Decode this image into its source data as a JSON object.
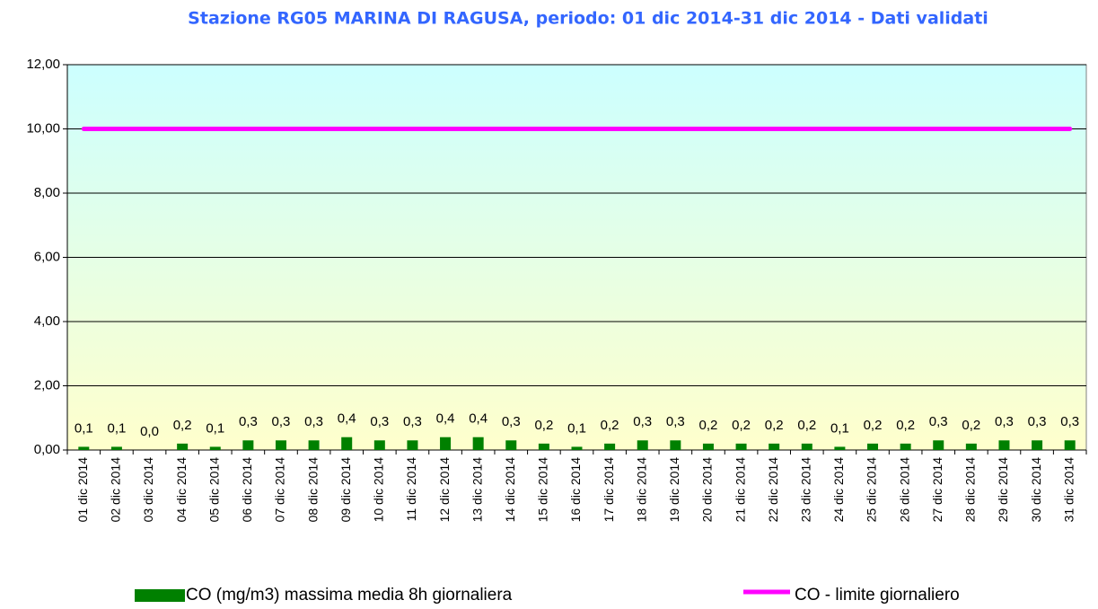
{
  "chart_data": {
    "type": "bar",
    "title": "Stazione RG05 MARINA DI RAGUSA, periodo: 01 dic 2014-31 dic 2014 - Dati validati",
    "categories": [
      "01 dic 2014",
      "02 dic 2014",
      "03 dic 2014",
      "04 dic 2014",
      "05 dic 2014",
      "06 dic 2014",
      "07 dic 2014",
      "08 dic 2014",
      "09 dic 2014",
      "10 dic 2014",
      "11 dic 2014",
      "12 dic 2014",
      "13 dic 2014",
      "14 dic 2014",
      "15 dic 2014",
      "16 dic 2014",
      "17 dic 2014",
      "18 dic 2014",
      "19 dic 2014",
      "20 dic 2014",
      "21 dic 2014",
      "22 dic 2014",
      "23 dic 2014",
      "24 dic 2014",
      "25 dic 2014",
      "26 dic 2014",
      "27 dic 2014",
      "28 dic 2014",
      "29 dic 2014",
      "30 dic 2014",
      "31 dic 2014"
    ],
    "series": [
      {
        "name": "CO (mg/m3) massima media 8h giornaliera",
        "color": "#008000",
        "values": [
          0.1,
          0.1,
          0.0,
          0.2,
          0.1,
          0.3,
          0.3,
          0.3,
          0.4,
          0.3,
          0.3,
          0.4,
          0.4,
          0.3,
          0.2,
          0.1,
          0.2,
          0.3,
          0.3,
          0.2,
          0.2,
          0.2,
          0.2,
          0.1,
          0.2,
          0.2,
          0.3,
          0.2,
          0.3,
          0.3,
          0.3
        ],
        "value_labels": [
          "0,1",
          "0,1",
          "0,0",
          "0,2",
          "0,1",
          "0,3",
          "0,3",
          "0,3",
          "0,4",
          "0,3",
          "0,3",
          "0,4",
          "0,4",
          "0,3",
          "0,2",
          "0,1",
          "0,2",
          "0,3",
          "0,3",
          "0,2",
          "0,2",
          "0,2",
          "0,2",
          "0,1",
          "0,2",
          "0,2",
          "0,3",
          "0,2",
          "0,3",
          "0,3",
          "0,3"
        ]
      },
      {
        "name": "CO - limite giornaliero",
        "color": "#ff00ff",
        "type": "line",
        "values": [
          10,
          10,
          10,
          10,
          10,
          10,
          10,
          10,
          10,
          10,
          10,
          10,
          10,
          10,
          10,
          10,
          10,
          10,
          10,
          10,
          10,
          10,
          10,
          10,
          10,
          10,
          10,
          10,
          10,
          10,
          10
        ]
      }
    ],
    "ylim": [
      0,
      12
    ],
    "yticks": [
      {
        "value": 0,
        "label": "0,00"
      },
      {
        "value": 2,
        "label": "2,00"
      },
      {
        "value": 4,
        "label": "4,00"
      },
      {
        "value": 6,
        "label": "6,00"
      },
      {
        "value": 8,
        "label": "8,00"
      },
      {
        "value": 10,
        "label": "10,00"
      },
      {
        "value": 12,
        "label": "12,00"
      }
    ],
    "grid": true
  }
}
